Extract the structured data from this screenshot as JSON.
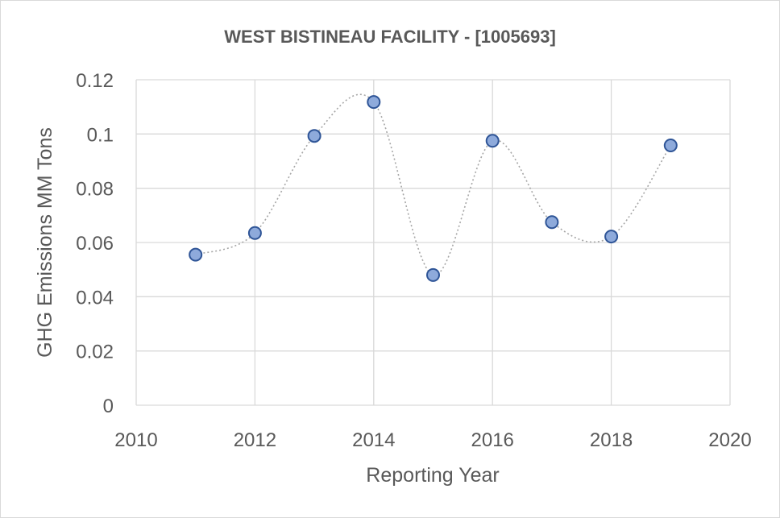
{
  "chart_data": {
    "type": "scatter",
    "title": "WEST BISTINEAU FACILITY - [1005693]",
    "xlabel": "Reporting Year",
    "ylabel": "GHG Emissions MM Tons",
    "xlim": [
      2010,
      2020
    ],
    "ylim": [
      0,
      0.12
    ],
    "x_ticks": [
      2010,
      2012,
      2014,
      2016,
      2018,
      2020
    ],
    "y_ticks": [
      0,
      0.02,
      0.04,
      0.06,
      0.08,
      0.1,
      0.12
    ],
    "x_tick_labels": [
      "2010",
      "2012",
      "2014",
      "2016",
      "2018",
      "2020"
    ],
    "y_tick_labels": [
      "0",
      "0.02",
      "0.04",
      "0.06",
      "0.08",
      "0.1",
      "0.12"
    ],
    "grid": true,
    "smoothed_trend_line": true,
    "marker_color": "#8eaadb",
    "marker_edge_color": "#2f5597",
    "trend_color": "#a6a6a6",
    "series": [
      {
        "x": [
          2011,
          2012,
          2013,
          2014,
          2015,
          2016,
          2017,
          2018,
          2019
        ],
        "y": [
          0.0555,
          0.0635,
          0.0993,
          0.1118,
          0.048,
          0.0975,
          0.0675,
          0.0622,
          0.0958
        ]
      }
    ]
  }
}
